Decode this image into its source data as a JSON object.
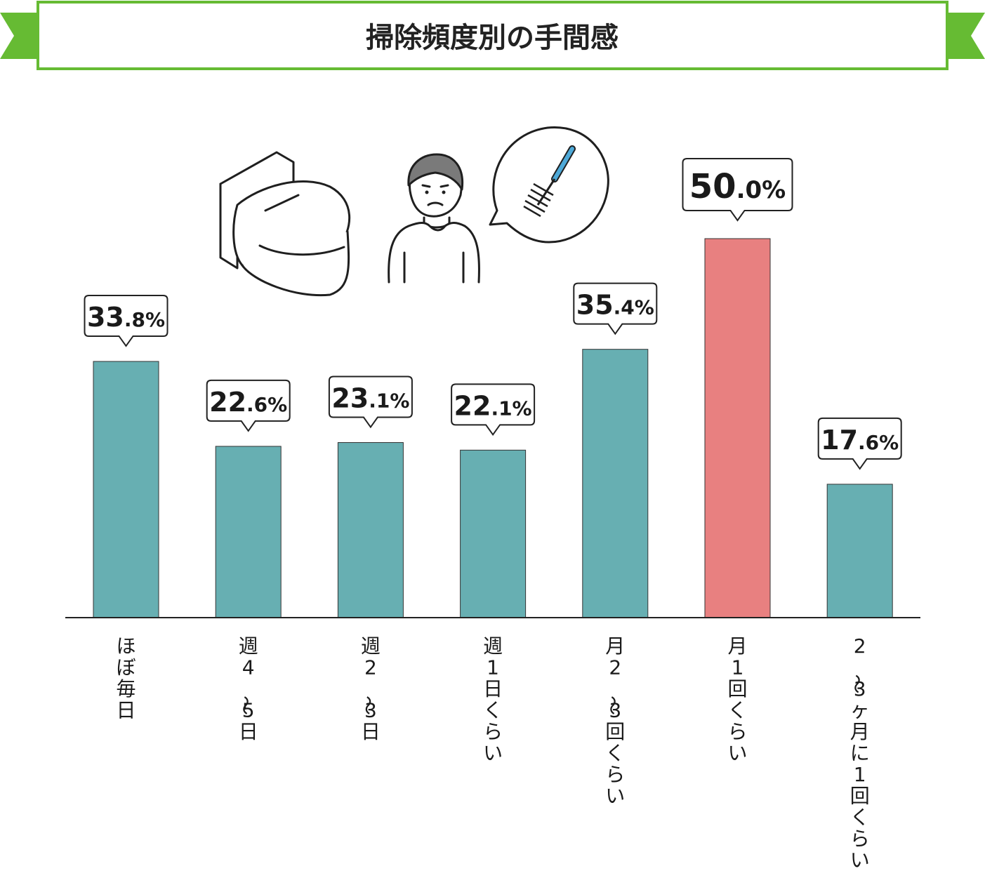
{
  "chart_data": {
    "type": "bar",
    "title": "掃除頻度別の手間感",
    "categories": [
      "ほぼ毎日",
      "週4～5日",
      "週2～3日",
      "週1日くらい",
      "月2～3回くらい",
      "月1回くらい",
      "2～3ヶ月に1回くらい"
    ],
    "values": [
      33.8,
      22.6,
      23.1,
      22.1,
      35.4,
      50.0,
      17.6
    ],
    "value_labels": [
      "33.8%",
      "22.6%",
      "23.1%",
      "22.1%",
      "35.4%",
      "50.0%",
      "17.6%"
    ],
    "highlight_index": 5,
    "ylim": [
      0,
      50
    ],
    "grid": false,
    "legend": false,
    "colors": {
      "bar": "#67afb2",
      "highlight": "#e88080",
      "frame": "#66bb33",
      "axis": "#222222"
    }
  }
}
